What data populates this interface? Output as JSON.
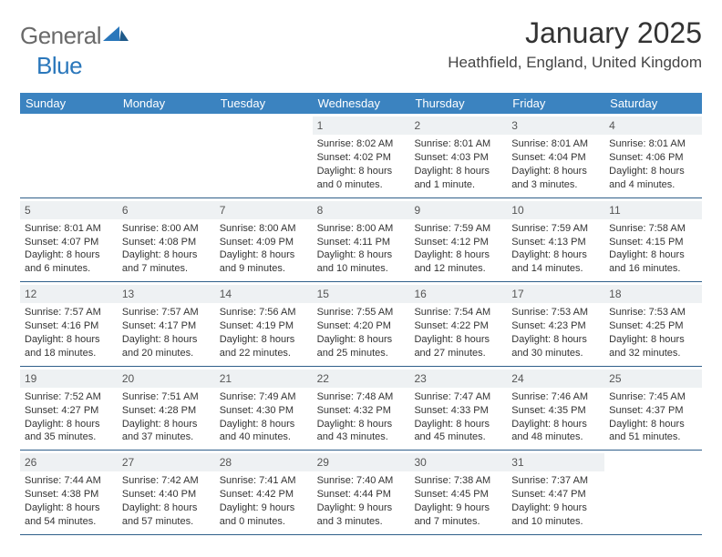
{
  "logo": {
    "text1": "General",
    "text2": "Blue"
  },
  "title": "January 2025",
  "location": "Heathfield, England, United Kingdom",
  "colors": {
    "header_bg": "#3b83c0",
    "header_text": "#ffffff",
    "daynum_bg": "#eef1f3",
    "row_border": "#2f5f8a",
    "logo_gray": "#6a6a6a",
    "logo_blue": "#2a77bb"
  },
  "weekdays": [
    "Sunday",
    "Monday",
    "Tuesday",
    "Wednesday",
    "Thursday",
    "Friday",
    "Saturday"
  ],
  "weeks": [
    [
      {
        "empty": true
      },
      {
        "empty": true
      },
      {
        "empty": true
      },
      {
        "n": "1",
        "sr": "Sunrise: 8:02 AM",
        "ss": "Sunset: 4:02 PM",
        "d1": "Daylight: 8 hours",
        "d2": "and 0 minutes."
      },
      {
        "n": "2",
        "sr": "Sunrise: 8:01 AM",
        "ss": "Sunset: 4:03 PM",
        "d1": "Daylight: 8 hours",
        "d2": "and 1 minute."
      },
      {
        "n": "3",
        "sr": "Sunrise: 8:01 AM",
        "ss": "Sunset: 4:04 PM",
        "d1": "Daylight: 8 hours",
        "d2": "and 3 minutes."
      },
      {
        "n": "4",
        "sr": "Sunrise: 8:01 AM",
        "ss": "Sunset: 4:06 PM",
        "d1": "Daylight: 8 hours",
        "d2": "and 4 minutes."
      }
    ],
    [
      {
        "n": "5",
        "sr": "Sunrise: 8:01 AM",
        "ss": "Sunset: 4:07 PM",
        "d1": "Daylight: 8 hours",
        "d2": "and 6 minutes."
      },
      {
        "n": "6",
        "sr": "Sunrise: 8:00 AM",
        "ss": "Sunset: 4:08 PM",
        "d1": "Daylight: 8 hours",
        "d2": "and 7 minutes."
      },
      {
        "n": "7",
        "sr": "Sunrise: 8:00 AM",
        "ss": "Sunset: 4:09 PM",
        "d1": "Daylight: 8 hours",
        "d2": "and 9 minutes."
      },
      {
        "n": "8",
        "sr": "Sunrise: 8:00 AM",
        "ss": "Sunset: 4:11 PM",
        "d1": "Daylight: 8 hours",
        "d2": "and 10 minutes."
      },
      {
        "n": "9",
        "sr": "Sunrise: 7:59 AM",
        "ss": "Sunset: 4:12 PM",
        "d1": "Daylight: 8 hours",
        "d2": "and 12 minutes."
      },
      {
        "n": "10",
        "sr": "Sunrise: 7:59 AM",
        "ss": "Sunset: 4:13 PM",
        "d1": "Daylight: 8 hours",
        "d2": "and 14 minutes."
      },
      {
        "n": "11",
        "sr": "Sunrise: 7:58 AM",
        "ss": "Sunset: 4:15 PM",
        "d1": "Daylight: 8 hours",
        "d2": "and 16 minutes."
      }
    ],
    [
      {
        "n": "12",
        "sr": "Sunrise: 7:57 AM",
        "ss": "Sunset: 4:16 PM",
        "d1": "Daylight: 8 hours",
        "d2": "and 18 minutes."
      },
      {
        "n": "13",
        "sr": "Sunrise: 7:57 AM",
        "ss": "Sunset: 4:17 PM",
        "d1": "Daylight: 8 hours",
        "d2": "and 20 minutes."
      },
      {
        "n": "14",
        "sr": "Sunrise: 7:56 AM",
        "ss": "Sunset: 4:19 PM",
        "d1": "Daylight: 8 hours",
        "d2": "and 22 minutes."
      },
      {
        "n": "15",
        "sr": "Sunrise: 7:55 AM",
        "ss": "Sunset: 4:20 PM",
        "d1": "Daylight: 8 hours",
        "d2": "and 25 minutes."
      },
      {
        "n": "16",
        "sr": "Sunrise: 7:54 AM",
        "ss": "Sunset: 4:22 PM",
        "d1": "Daylight: 8 hours",
        "d2": "and 27 minutes."
      },
      {
        "n": "17",
        "sr": "Sunrise: 7:53 AM",
        "ss": "Sunset: 4:23 PM",
        "d1": "Daylight: 8 hours",
        "d2": "and 30 minutes."
      },
      {
        "n": "18",
        "sr": "Sunrise: 7:53 AM",
        "ss": "Sunset: 4:25 PM",
        "d1": "Daylight: 8 hours",
        "d2": "and 32 minutes."
      }
    ],
    [
      {
        "n": "19",
        "sr": "Sunrise: 7:52 AM",
        "ss": "Sunset: 4:27 PM",
        "d1": "Daylight: 8 hours",
        "d2": "and 35 minutes."
      },
      {
        "n": "20",
        "sr": "Sunrise: 7:51 AM",
        "ss": "Sunset: 4:28 PM",
        "d1": "Daylight: 8 hours",
        "d2": "and 37 minutes."
      },
      {
        "n": "21",
        "sr": "Sunrise: 7:49 AM",
        "ss": "Sunset: 4:30 PM",
        "d1": "Daylight: 8 hours",
        "d2": "and 40 minutes."
      },
      {
        "n": "22",
        "sr": "Sunrise: 7:48 AM",
        "ss": "Sunset: 4:32 PM",
        "d1": "Daylight: 8 hours",
        "d2": "and 43 minutes."
      },
      {
        "n": "23",
        "sr": "Sunrise: 7:47 AM",
        "ss": "Sunset: 4:33 PM",
        "d1": "Daylight: 8 hours",
        "d2": "and 45 minutes."
      },
      {
        "n": "24",
        "sr": "Sunrise: 7:46 AM",
        "ss": "Sunset: 4:35 PM",
        "d1": "Daylight: 8 hours",
        "d2": "and 48 minutes."
      },
      {
        "n": "25",
        "sr": "Sunrise: 7:45 AM",
        "ss": "Sunset: 4:37 PM",
        "d1": "Daylight: 8 hours",
        "d2": "and 51 minutes."
      }
    ],
    [
      {
        "n": "26",
        "sr": "Sunrise: 7:44 AM",
        "ss": "Sunset: 4:38 PM",
        "d1": "Daylight: 8 hours",
        "d2": "and 54 minutes."
      },
      {
        "n": "27",
        "sr": "Sunrise: 7:42 AM",
        "ss": "Sunset: 4:40 PM",
        "d1": "Daylight: 8 hours",
        "d2": "and 57 minutes."
      },
      {
        "n": "28",
        "sr": "Sunrise: 7:41 AM",
        "ss": "Sunset: 4:42 PM",
        "d1": "Daylight: 9 hours",
        "d2": "and 0 minutes."
      },
      {
        "n": "29",
        "sr": "Sunrise: 7:40 AM",
        "ss": "Sunset: 4:44 PM",
        "d1": "Daylight: 9 hours",
        "d2": "and 3 minutes."
      },
      {
        "n": "30",
        "sr": "Sunrise: 7:38 AM",
        "ss": "Sunset: 4:45 PM",
        "d1": "Daylight: 9 hours",
        "d2": "and 7 minutes."
      },
      {
        "n": "31",
        "sr": "Sunrise: 7:37 AM",
        "ss": "Sunset: 4:47 PM",
        "d1": "Daylight: 9 hours",
        "d2": "and 10 minutes."
      },
      {
        "empty": true
      }
    ]
  ]
}
